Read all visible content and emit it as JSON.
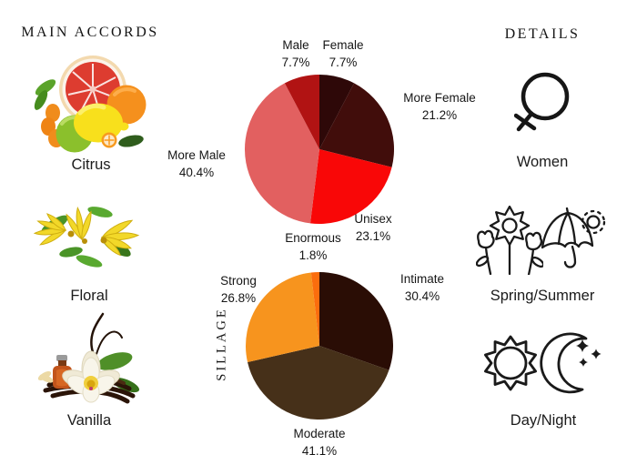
{
  "left_panel": {
    "title": "MAIN ACCORDS",
    "items": [
      {
        "label": "Citrus"
      },
      {
        "label": "Floral"
      },
      {
        "label": "Vanilla"
      }
    ]
  },
  "right_panel": {
    "title": "DETAILS",
    "items": [
      {
        "label": "Women"
      },
      {
        "label": "Spring/Summer"
      },
      {
        "label": "Day/Night"
      }
    ]
  },
  "chart_data": [
    {
      "type": "pie",
      "title": "",
      "categories": [
        "Female",
        "More Female",
        "Unisex",
        "More Male",
        "Male"
      ],
      "values": [
        7.7,
        21.2,
        23.1,
        40.4,
        7.7
      ],
      "colors": [
        "#2e0808",
        "#410d0b",
        "#f90707",
        "#e26060",
        "#b11313"
      ],
      "start": "12-oclock, clockwise",
      "legend": "none",
      "labels": [
        {
          "name": "Female",
          "pct": "7.7%"
        },
        {
          "name": "More Female",
          "pct": "21.2%"
        },
        {
          "name": "Unisex",
          "pct": "23.1%"
        },
        {
          "name": "More Male",
          "pct": "40.4%"
        },
        {
          "name": "Male",
          "pct": "7.7%"
        }
      ]
    },
    {
      "type": "pie",
      "title": "SILLAGE",
      "categories": [
        "Intimate",
        "Moderate",
        "Strong",
        "Enormous"
      ],
      "values": [
        30.4,
        41.1,
        26.8,
        1.8
      ],
      "colors": [
        "#2a0d05",
        "#463019",
        "#f7941e",
        "#fb6d0d"
      ],
      "start": "12-oclock, clockwise",
      "legend": "none",
      "labels": [
        {
          "name": "Intimate",
          "pct": "30.4%"
        },
        {
          "name": "Moderate",
          "pct": "41.1%"
        },
        {
          "name": "Strong",
          "pct": "26.8%"
        },
        {
          "name": "Enormous",
          "pct": "1.8%"
        }
      ]
    }
  ]
}
